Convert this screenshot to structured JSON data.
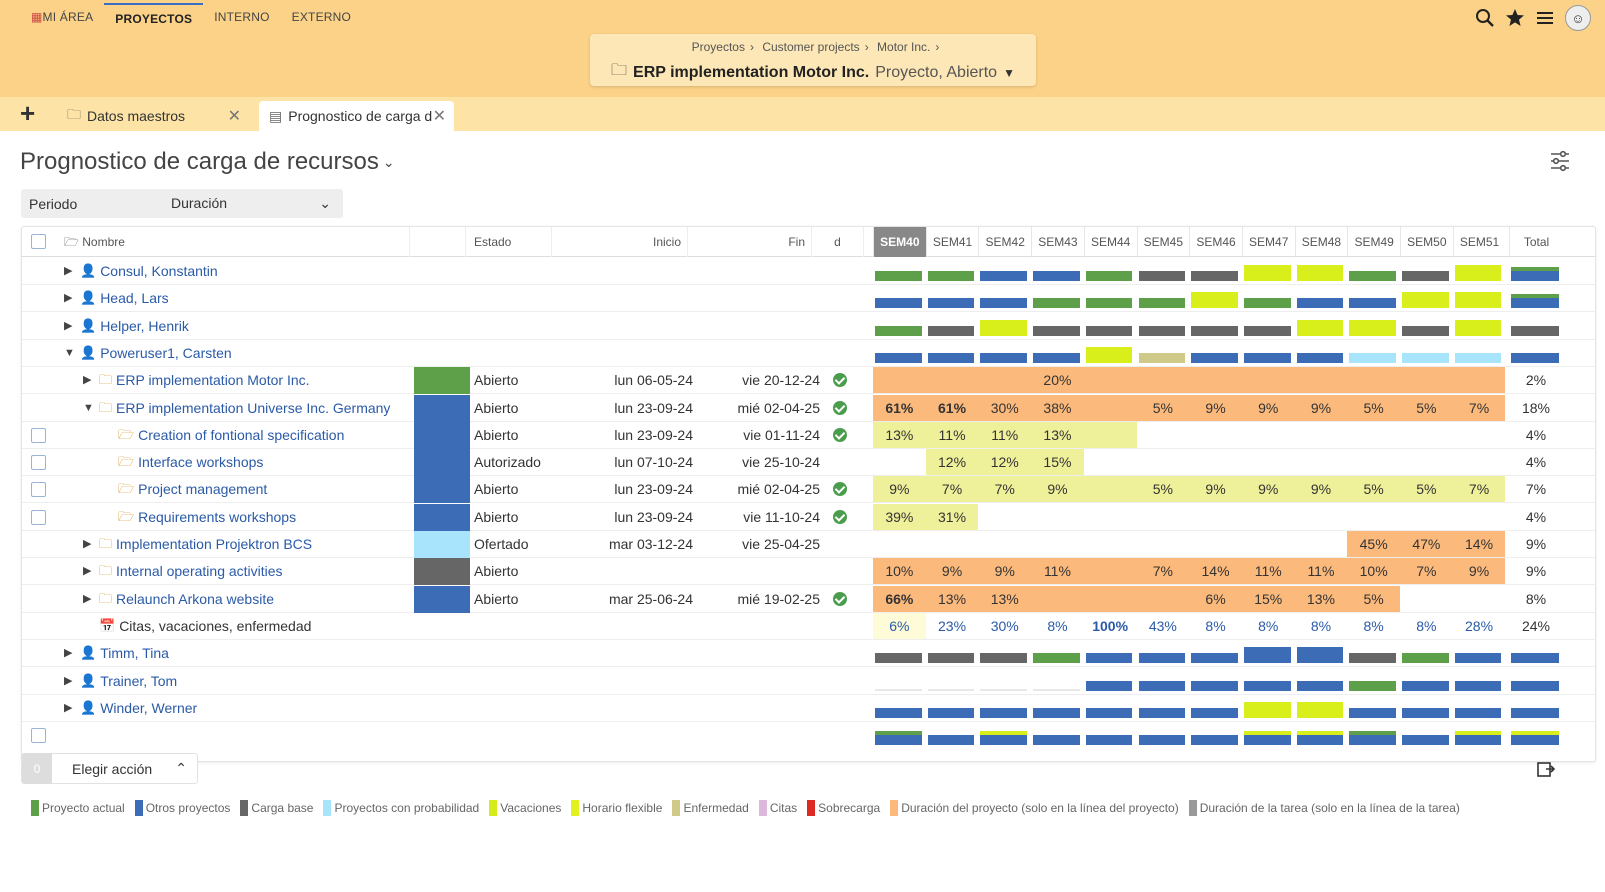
{
  "nav": {
    "items": [
      "MI ÁREA",
      "PROYECTOS",
      "INTERNO",
      "EXTERNO"
    ],
    "active": 1
  },
  "breadcrumb": {
    "items": [
      "Proyectos",
      "Customer projects",
      "Motor Inc."
    ],
    "title": "ERP implementation Motor Inc.",
    "subtitle": "Proyecto, Abierto"
  },
  "tabs": {
    "add_label": "+",
    "tab1": "Datos maestros",
    "tab2": "Prognostico de carga d"
  },
  "page": {
    "title": "Prognostico de carga de recursos"
  },
  "period": {
    "label": "Periodo",
    "value": "Duración"
  },
  "table": {
    "headers": {
      "name": "Nombre",
      "state": "Estado",
      "start": "Inicio",
      "end": "Fin",
      "d": "d",
      "total": "Total"
    },
    "weeks": [
      "SEM40",
      "SEM41",
      "SEM42",
      "SEM43",
      "SEM44",
      "SEM45",
      "SEM46",
      "SEM47",
      "SEM48",
      "SEM49",
      "SEM50",
      "SEM51"
    ],
    "rows": [
      {
        "type": "person",
        "name": "Consul, Konstantin",
        "level": 0,
        "expanded": false,
        "load": [
          "g",
          "g",
          "b",
          "b",
          "g",
          "k",
          "k",
          "y",
          "y",
          "g",
          "k",
          "y"
        ],
        "total": "bg"
      },
      {
        "type": "person",
        "name": "Head, Lars",
        "level": 0,
        "expanded": false,
        "load": [
          "b",
          "b",
          "b",
          "g",
          "g",
          "g",
          "y",
          "g",
          "b",
          "b",
          "y",
          "y"
        ],
        "total": "bg"
      },
      {
        "type": "person",
        "name": "Helper, Henrik",
        "level": 0,
        "expanded": false,
        "load": [
          "g",
          "k",
          "y",
          "k",
          "k",
          "k",
          "k",
          "k",
          "y",
          "y",
          "k",
          "y"
        ],
        "total": "k"
      },
      {
        "type": "person",
        "name": "Poweruser1, Carsten",
        "level": 0,
        "expanded": true,
        "load": [
          "b",
          "b",
          "b",
          "b",
          "y",
          "t",
          "b",
          "b",
          "b",
          "l",
          "l",
          "l"
        ],
        "total": "b"
      },
      {
        "type": "project",
        "name": "ERP implementation Motor Inc.",
        "level": 1,
        "expanded": false,
        "color": "#5ea04a",
        "state": "Abierto",
        "start": "lun 06-05-24",
        "end": "vie 20-12-24",
        "ok": true,
        "span": [
          0,
          12
        ],
        "bg": "#fbb97c",
        "values": [
          "",
          "",
          "",
          "20%",
          "",
          "",
          "",
          "",
          "",
          "",
          "",
          ""
        ],
        "total": "2%"
      },
      {
        "type": "project",
        "name": "ERP implementation Universe Inc. Germany",
        "level": 1,
        "expanded": true,
        "color": "#3b6cb5",
        "state": "Abierto",
        "start": "lun 23-09-24",
        "end": "mié 02-04-25",
        "ok": true,
        "span": [
          0,
          12
        ],
        "bg": "#fbb97c",
        "values": [
          "61%",
          "61%",
          "30%",
          "38%",
          "",
          "5%",
          "9%",
          "9%",
          "9%",
          "5%",
          "5%",
          "7%"
        ],
        "bold": [
          0,
          1
        ],
        "total": "18%"
      },
      {
        "type": "task",
        "name": "Creation of fontional specification",
        "level": 2,
        "color": "#3b6cb5",
        "state": "Abierto",
        "start": "lun 23-09-24",
        "end": "vie 01-11-24",
        "ok": true,
        "span": [
          0,
          5
        ],
        "bg": "#eff09a",
        "values": [
          "13%",
          "11%",
          "11%",
          "13%",
          "",
          "",
          "",
          "",
          "",
          "",
          "",
          ""
        ],
        "total": "4%"
      },
      {
        "type": "task",
        "name": "Interface workshops",
        "level": 2,
        "color": "#3b6cb5",
        "state": "Autorizado",
        "start": "lun 07-10-24",
        "end": "vie 25-10-24",
        "ok": false,
        "span": [
          1,
          4
        ],
        "bg": "#eff09a",
        "values": [
          "",
          "12%",
          "12%",
          "15%",
          "",
          "",
          "",
          "",
          "",
          "",
          "",
          ""
        ],
        "total": "4%"
      },
      {
        "type": "task",
        "name": "Project management",
        "level": 2,
        "color": "#3b6cb5",
        "state": "Abierto",
        "start": "lun 23-09-24",
        "end": "mié 02-04-25",
        "ok": true,
        "span": [
          0,
          12
        ],
        "bg": "#eff09a",
        "values": [
          "9%",
          "7%",
          "7%",
          "9%",
          "",
          "5%",
          "9%",
          "9%",
          "9%",
          "5%",
          "5%",
          "7%"
        ],
        "total": "7%"
      },
      {
        "type": "task",
        "name": "Requirements workshops",
        "level": 2,
        "color": "#3b6cb5",
        "state": "Abierto",
        "start": "lun 23-09-24",
        "end": "vie 11-10-24",
        "ok": true,
        "span": [
          0,
          2
        ],
        "bg": "#eff09a",
        "values": [
          "39%",
          "31%",
          "",
          "",
          "",
          "",
          "",
          "",
          "",
          "",
          "",
          ""
        ],
        "total": "4%"
      },
      {
        "type": "project",
        "name": "Implementation Projektron BCS",
        "level": 1,
        "expanded": false,
        "color": "#a8e4fb",
        "state": "Ofertado",
        "start": "mar 03-12-24",
        "end": "vie 25-04-25",
        "ok": false,
        "span": [
          9,
          12
        ],
        "bg": "#fbb97c",
        "values": [
          "",
          "",
          "",
          "",
          "",
          "",
          "",
          "",
          "",
          "45%",
          "47%",
          "14%"
        ],
        "total": "9%"
      },
      {
        "type": "project",
        "name": "Internal operating activities",
        "level": 1,
        "expanded": false,
        "color": "#666666",
        "state": "Abierto",
        "start": "",
        "end": "",
        "ok": false,
        "span": [
          0,
          12
        ],
        "bg": "#fbb97c",
        "values": [
          "10%",
          "9%",
          "9%",
          "11%",
          "",
          "7%",
          "14%",
          "11%",
          "11%",
          "10%",
          "7%",
          "9%"
        ],
        "total": "9%"
      },
      {
        "type": "project",
        "name": "Relaunch Arkona website",
        "level": 1,
        "expanded": false,
        "color": "#3b6cb5",
        "state": "Abierto",
        "start": "mar 25-06-24",
        "end": "mié 19-02-25",
        "ok": true,
        "span": [
          0,
          10
        ],
        "bg": "#fbb97c",
        "values": [
          "66%",
          "13%",
          "13%",
          "",
          "",
          "",
          "6%",
          "15%",
          "13%",
          "5%",
          "",
          ""
        ],
        "bold": [
          0
        ],
        "total": "8%"
      },
      {
        "type": "absence",
        "name": "Citas, vacaciones, enfermedad",
        "level": 1,
        "values": [
          "6%",
          "23%",
          "30%",
          "8%",
          "100%",
          "43%",
          "8%",
          "8%",
          "8%",
          "8%",
          "8%",
          "28%"
        ],
        "bold": [
          4
        ],
        "total": "24%"
      },
      {
        "type": "person",
        "name": "Timm, Tina",
        "level": 0,
        "expanded": false,
        "load": [
          "k",
          "k",
          "k",
          "g",
          "b",
          "b",
          "b",
          "B",
          "B",
          "k",
          "g",
          "b"
        ],
        "total": "b"
      },
      {
        "type": "person",
        "name": "Trainer, Tom",
        "level": 0,
        "expanded": false,
        "load": [
          "e",
          "e",
          "e",
          "e",
          "b",
          "b",
          "b",
          "b",
          "b",
          "g",
          "b",
          "b"
        ],
        "total": "b"
      },
      {
        "type": "person",
        "name": "Winder, Werner",
        "level": 0,
        "expanded": false,
        "load": [
          "b",
          "b",
          "b",
          "b",
          "b",
          "b",
          "b",
          "y",
          "y",
          "b",
          "b",
          "b"
        ],
        "total": "b"
      }
    ],
    "summary": [
      "bg",
      "b",
      "by",
      "b",
      "b",
      "b",
      "b",
      "by",
      "by",
      "bg",
      "b",
      "by"
    ]
  },
  "action": {
    "count": "0",
    "label": "Elegir acción"
  },
  "legend": [
    {
      "color": "#5ea04a",
      "label": "Proyecto actual"
    },
    {
      "color": "#3b6cb5",
      "label": "Otros proyectos"
    },
    {
      "color": "#666666",
      "label": "Carga base"
    },
    {
      "color": "#a8e4fb",
      "label": "Proyectos con probabilidad"
    },
    {
      "color": "#d4ec1a",
      "label": "Vacaciones"
    },
    {
      "color": "#e2f21e",
      "label": "Horario flexible"
    },
    {
      "color": "#cfc98a",
      "label": "Enfermedad"
    },
    {
      "color": "#ddb8dc",
      "label": "Citas"
    },
    {
      "color": "#dd2a22",
      "label": "Sobrecarga"
    },
    {
      "color": "#fbb97c",
      "label": "Duración del proyecto (solo en la línea del proyecto)"
    },
    {
      "color": "#999999",
      "label": "Duración de la tarea (solo en la línea de la tarea)"
    }
  ]
}
